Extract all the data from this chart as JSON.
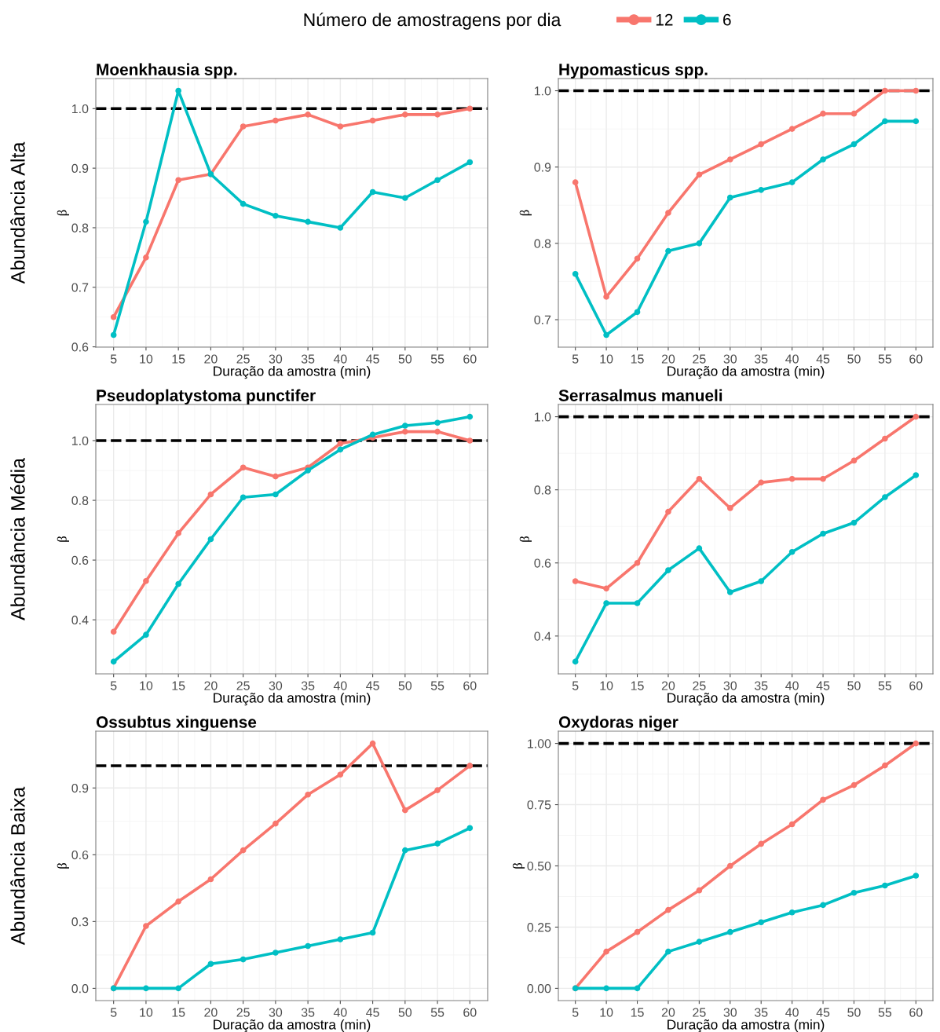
{
  "chart_data": [
    {
      "type": "line",
      "title": "Moenkhausia spp.",
      "xlabel": "Duração da amostra (min)",
      "ylabel": "β",
      "annotations": [
        "Abundância Alta"
      ],
      "legend": "top",
      "legend_title": "Número de amostragens por dia",
      "grid": true,
      "marker": "circle",
      "line_style": "solid",
      "categories": [
        "5",
        "10",
        "15",
        "20",
        "25",
        "30",
        "35",
        "40",
        "45",
        "50",
        "55",
        "60"
      ],
      "ylim": [
        0.5995,
        1.0505
      ],
      "yticks": [
        {
          "value": 0.6,
          "label": "0.6"
        },
        {
          "value": 0.7,
          "label": "0.7"
        },
        {
          "value": 0.8,
          "label": "0.8"
        },
        {
          "value": 0.9,
          "label": "0.9"
        },
        {
          "value": 1.0,
          "label": "1.0"
        }
      ],
      "ref_lines": [
        {
          "axis": "y",
          "value": 1.0,
          "color": "#000000",
          "line_style": "dashed"
        }
      ],
      "series": [
        {
          "name": "12",
          "color": "#f8766d",
          "values": [
            0.65,
            0.75,
            0.88,
            0.89,
            0.97,
            0.98,
            0.99,
            0.97,
            0.98,
            0.99,
            0.99,
            1.0
          ]
        },
        {
          "name": "6",
          "color": "#00bfc4",
          "values": [
            0.62,
            0.81,
            1.03,
            0.89,
            0.84,
            0.82,
            0.81,
            0.8,
            0.86,
            0.85,
            0.88,
            0.91
          ]
        }
      ]
    },
    {
      "type": "line",
      "title": "Hypomasticus spp.",
      "xlabel": "Duração da amostra (min)",
      "ylabel": "β",
      "grid": true,
      "marker": "circle",
      "line_style": "solid",
      "categories": [
        "5",
        "10",
        "15",
        "20",
        "25",
        "30",
        "35",
        "40",
        "45",
        "50",
        "55",
        "60"
      ],
      "ylim": [
        0.664,
        1.016
      ],
      "yticks": [
        {
          "value": 0.7,
          "label": "0.7"
        },
        {
          "value": 0.8,
          "label": "0.8"
        },
        {
          "value": 0.9,
          "label": "0.9"
        },
        {
          "value": 1.0,
          "label": "1.0"
        }
      ],
      "ref_lines": [
        {
          "axis": "y",
          "value": 1.0,
          "color": "#000000",
          "line_style": "dashed"
        }
      ],
      "series": [
        {
          "color": "#f8766d",
          "values": [
            0.88,
            0.73,
            0.78,
            0.84,
            0.89,
            0.91,
            0.93,
            0.95,
            0.97,
            0.97,
            1.0,
            1.0
          ]
        },
        {
          "color": "#00bfc4",
          "values": [
            0.76,
            0.68,
            0.71,
            0.79,
            0.8,
            0.86,
            0.87,
            0.88,
            0.91,
            0.93,
            0.96,
            0.96
          ]
        }
      ]
    },
    {
      "type": "line",
      "title": "Pseudoplatystoma punctifer",
      "xlabel": "Duração da amostra (min)",
      "ylabel": "β",
      "annotations": [
        "Abundância Média"
      ],
      "grid": true,
      "marker": "circle",
      "line_style": "solid",
      "categories": [
        "5",
        "10",
        "15",
        "20",
        "25",
        "30",
        "35",
        "40",
        "45",
        "50",
        "55",
        "60"
      ],
      "ylim": [
        0.219,
        1.121
      ],
      "yticks": [
        {
          "value": 0.4,
          "label": "0.4"
        },
        {
          "value": 0.6,
          "label": "0.6"
        },
        {
          "value": 0.8,
          "label": "0.8"
        },
        {
          "value": 1.0,
          "label": "1.0"
        }
      ],
      "ref_lines": [
        {
          "axis": "y",
          "value": 1.0,
          "color": "#000000",
          "line_style": "dashed"
        }
      ],
      "series": [
        {
          "color": "#f8766d",
          "values": [
            0.36,
            0.53,
            0.69,
            0.82,
            0.91,
            0.88,
            0.91,
            0.99,
            1.01,
            1.03,
            1.03,
            1.0
          ]
        },
        {
          "color": "#00bfc4",
          "values": [
            0.26,
            0.35,
            0.52,
            0.67,
            0.81,
            0.82,
            0.9,
            0.97,
            1.02,
            1.05,
            1.06,
            1.08
          ]
        }
      ]
    },
    {
      "type": "line",
      "title": "Serrasalmus manueli",
      "xlabel": "Duração da amostra (min)",
      "ylabel": "β",
      "grid": true,
      "marker": "circle",
      "line_style": "solid",
      "categories": [
        "5",
        "10",
        "15",
        "20",
        "25",
        "30",
        "35",
        "40",
        "45",
        "50",
        "55",
        "60"
      ],
      "ylim": [
        0.2965,
        1.0335
      ],
      "yticks": [
        {
          "value": 0.4,
          "label": "0.4"
        },
        {
          "value": 0.6,
          "label": "0.6"
        },
        {
          "value": 0.8,
          "label": "0.8"
        },
        {
          "value": 1.0,
          "label": "1.0"
        }
      ],
      "ref_lines": [
        {
          "axis": "y",
          "value": 1.0,
          "color": "#000000",
          "line_style": "dashed"
        }
      ],
      "series": [
        {
          "color": "#f8766d",
          "values": [
            0.55,
            0.53,
            0.6,
            0.74,
            0.83,
            0.75,
            0.82,
            0.83,
            0.83,
            0.88,
            0.94,
            1.0
          ]
        },
        {
          "color": "#00bfc4",
          "values": [
            0.33,
            0.49,
            0.49,
            0.58,
            0.64,
            0.52,
            0.55,
            0.63,
            0.68,
            0.71,
            0.78,
            0.84
          ]
        }
      ]
    },
    {
      "type": "line",
      "title": "Ossubtus xinguense",
      "xlabel": "Duração da amostra (min)",
      "ylabel": "β",
      "annotations": [
        "Abundância Baixa"
      ],
      "grid": true,
      "marker": "circle",
      "line_style": "solid",
      "categories": [
        "5",
        "10",
        "15",
        "20",
        "25",
        "30",
        "35",
        "40",
        "45",
        "50",
        "55",
        "60"
      ],
      "ylim": [
        -0.055,
        1.155
      ],
      "yticks": [
        {
          "value": 0.0,
          "label": "0.0"
        },
        {
          "value": 0.3,
          "label": "0.3"
        },
        {
          "value": 0.6,
          "label": "0.6"
        },
        {
          "value": 0.9,
          "label": "0.9"
        }
      ],
      "ref_lines": [
        {
          "axis": "y",
          "value": 1.0,
          "color": "#000000",
          "line_style": "dashed"
        }
      ],
      "series": [
        {
          "color": "#f8766d",
          "values": [
            0.0,
            0.28,
            0.39,
            0.49,
            0.62,
            0.74,
            0.87,
            0.96,
            1.1,
            0.8,
            0.89,
            1.0
          ]
        },
        {
          "color": "#00bfc4",
          "values": [
            0.0,
            0.0,
            0.0,
            0.11,
            0.13,
            0.16,
            0.19,
            0.22,
            0.25,
            0.62,
            0.65,
            0.72
          ]
        }
      ]
    },
    {
      "type": "line",
      "title": "Oxydoras niger",
      "xlabel": "Duração da amostra (min)",
      "ylabel": "β",
      "grid": true,
      "marker": "circle",
      "line_style": "solid",
      "categories": [
        "5",
        "10",
        "15",
        "20",
        "25",
        "30",
        "35",
        "40",
        "45",
        "50",
        "55",
        "60"
      ],
      "ylim": [
        -0.05,
        1.05
      ],
      "yticks": [
        {
          "value": 0.0,
          "label": "0.00"
        },
        {
          "value": 0.25,
          "label": "0.25"
        },
        {
          "value": 0.5,
          "label": "0.50"
        },
        {
          "value": 0.75,
          "label": "0.75"
        },
        {
          "value": 1.0,
          "label": "1.00"
        }
      ],
      "ref_lines": [
        {
          "axis": "y",
          "value": 1.0,
          "color": "#000000",
          "line_style": "dashed"
        }
      ],
      "series": [
        {
          "color": "#f8766d",
          "values": [
            0.0,
            0.15,
            0.23,
            0.32,
            0.4,
            0.5,
            0.59,
            0.67,
            0.77,
            0.83,
            0.91,
            1.0
          ]
        },
        {
          "color": "#00bfc4",
          "values": [
            0.0,
            0.0,
            0.0,
            0.15,
            0.19,
            0.23,
            0.27,
            0.31,
            0.34,
            0.39,
            0.42,
            0.46
          ]
        }
      ]
    }
  ]
}
